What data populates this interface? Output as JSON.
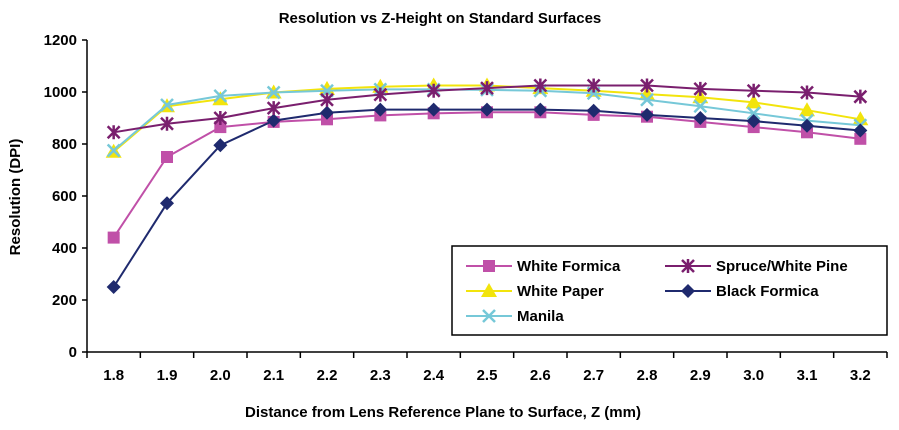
{
  "chart_data": {
    "type": "line",
    "title": "Resolution vs Z-Height on Standard Surfaces",
    "xlabel": "Distance from Lens Reference Plane to Surface, Z (mm)",
    "ylabel": "Resolution (DPI)",
    "categories": [
      "1.8",
      "1.9",
      "2.0",
      "2.1",
      "2.2",
      "2.3",
      "2.4",
      "2.5",
      "2.6",
      "2.7",
      "2.8",
      "2.9",
      "3.0",
      "3.1",
      "3.2"
    ],
    "ylim": [
      0,
      1200
    ],
    "yticks": [
      "0",
      "200",
      "400",
      "600",
      "800",
      "1000",
      "1200"
    ],
    "grid": false,
    "legend_position": "bottom-right",
    "series": [
      {
        "name": "White Formica",
        "color": "#c050a8",
        "marker": "square",
        "values": [
          440,
          750,
          865,
          885,
          895,
          910,
          918,
          922,
          922,
          912,
          905,
          885,
          865,
          845,
          820
        ]
      },
      {
        "name": "Spruce/White Pine",
        "color": "#7a1f6e",
        "marker": "star",
        "values": [
          845,
          878,
          900,
          938,
          970,
          990,
          1005,
          1015,
          1025,
          1025,
          1025,
          1012,
          1005,
          998,
          982
        ]
      },
      {
        "name": "White Paper",
        "color": "#f2e40c",
        "marker": "triangle",
        "values": [
          770,
          945,
          972,
          998,
          1012,
          1020,
          1025,
          1025,
          1015,
          1005,
          992,
          980,
          960,
          930,
          895
        ]
      },
      {
        "name": "Black Formica",
        "color": "#1f2a6e",
        "marker": "diamond",
        "values": [
          250,
          572,
          795,
          890,
          920,
          932,
          932,
          932,
          932,
          928,
          912,
          900,
          888,
          870,
          852
        ]
      },
      {
        "name": "Manila",
        "color": "#76c8d8",
        "marker": "x",
        "values": [
          775,
          950,
          985,
          998,
          1005,
          1010,
          1010,
          1008,
          1005,
          995,
          970,
          945,
          918,
          890,
          872
        ]
      }
    ]
  }
}
